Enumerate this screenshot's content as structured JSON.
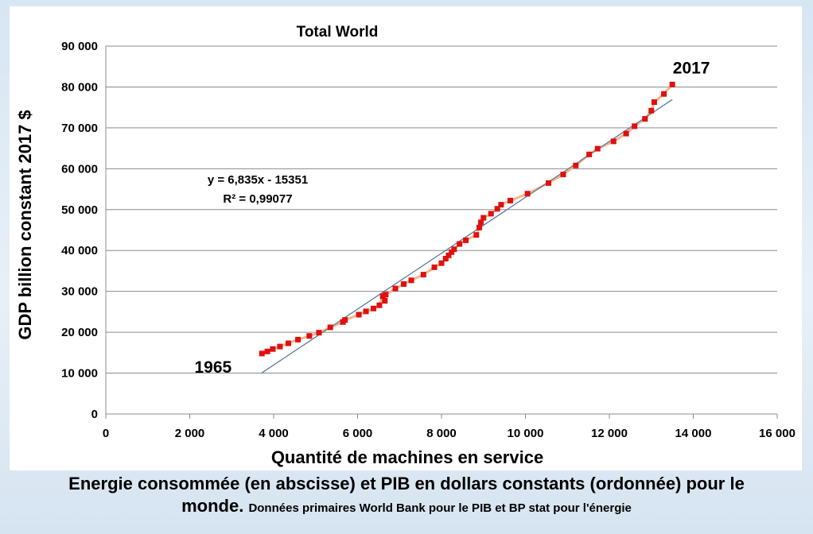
{
  "chart_data": {
    "type": "scatter",
    "title": "Total World",
    "xlabel": "Quantité de machines en service",
    "ylabel": "GDP billion constant 2017 $",
    "xlim": [
      0,
      16000
    ],
    "ylim": [
      0,
      90000
    ],
    "x_ticks": [
      0,
      2000,
      4000,
      6000,
      8000,
      10000,
      12000,
      14000,
      16000
    ],
    "x_tick_labels": [
      "0",
      "2 000",
      "4 000",
      "6 000",
      "8 000",
      "10 000",
      "12 000",
      "14 000",
      "16 000"
    ],
    "y_ticks": [
      0,
      10000,
      20000,
      30000,
      40000,
      50000,
      60000,
      70000,
      80000,
      90000
    ],
    "y_tick_labels": [
      "0",
      "10 000",
      "20 000",
      "30 000",
      "40 000",
      "50 000",
      "60 000",
      "70 000",
      "80 000",
      "90 000"
    ],
    "grid": "horizontal",
    "series": [
      {
        "color": "#e01010",
        "line_color": "#f5b58a",
        "points": [
          [
            3720,
            14800
          ],
          [
            3850,
            15300
          ],
          [
            3980,
            15900
          ],
          [
            4150,
            16500
          ],
          [
            4350,
            17300
          ],
          [
            4580,
            18200
          ],
          [
            4850,
            19100
          ],
          [
            5080,
            19900
          ],
          [
            5350,
            21200
          ],
          [
            5650,
            22500
          ],
          [
            5700,
            23000
          ],
          [
            6030,
            24300
          ],
          [
            6200,
            25100
          ],
          [
            6380,
            25800
          ],
          [
            6520,
            26600
          ],
          [
            6600,
            28800
          ],
          [
            6650,
            27700
          ],
          [
            6670,
            29200
          ],
          [
            6900,
            30700
          ],
          [
            7100,
            31800
          ],
          [
            7280,
            32700
          ],
          [
            7570,
            34100
          ],
          [
            7830,
            35900
          ],
          [
            8000,
            36900
          ],
          [
            8100,
            38000
          ],
          [
            8170,
            38800
          ],
          [
            8240,
            39600
          ],
          [
            8300,
            40300
          ],
          [
            8430,
            41600
          ],
          [
            8580,
            42500
          ],
          [
            8830,
            43800
          ],
          [
            8900,
            45600
          ],
          [
            8940,
            46900
          ],
          [
            9000,
            48000
          ],
          [
            9180,
            49000
          ],
          [
            9330,
            50200
          ],
          [
            9420,
            51200
          ],
          [
            9640,
            52200
          ],
          [
            10050,
            53900
          ],
          [
            10550,
            56500
          ],
          [
            10900,
            58600
          ],
          [
            11200,
            60800
          ],
          [
            11520,
            63500
          ],
          [
            11720,
            64900
          ],
          [
            12100,
            66700
          ],
          [
            12400,
            68600
          ],
          [
            12600,
            70400
          ],
          [
            12850,
            72200
          ],
          [
            13000,
            74200
          ],
          [
            13070,
            76300
          ],
          [
            13300,
            78300
          ],
          [
            13500,
            80600
          ]
        ]
      }
    ],
    "trendline": {
      "equation": "y = 6,835x - 15351",
      "r_squared": "R² = 0,99077",
      "slope": 6.835,
      "intercept": -15351,
      "x_range": [
        3720,
        13500
      ],
      "color": "#5b7a99"
    },
    "annotations": [
      {
        "text": "1965",
        "x": 3720,
        "y": 14800
      },
      {
        "text": "2017",
        "x": 13500,
        "y": 80600
      }
    ]
  },
  "caption": {
    "line1": "Energie consommée (en abscisse) et PIB en dollars constants (ordonnée) pour le",
    "line2_main": "monde.",
    "line2_small": "Données primaires World Bank pour le PIB et BP stat pour l'énergie"
  }
}
